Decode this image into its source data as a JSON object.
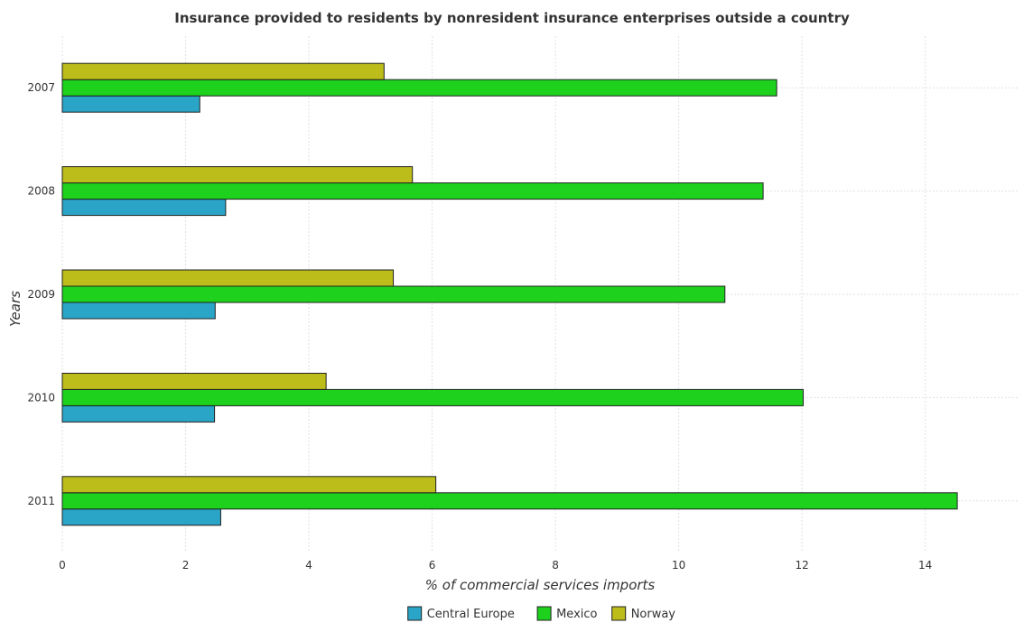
{
  "chart_data": {
    "type": "bar",
    "orientation": "horizontal",
    "title": "Insurance provided to residents by nonresident insurance enterprises outside a country",
    "xlabel": "% of commercial services imports",
    "ylabel": "Years",
    "categories": [
      "2007",
      "2008",
      "2009",
      "2010",
      "2011"
    ],
    "xlim": [
      0,
      15.5
    ],
    "xticks": [
      0,
      2,
      4,
      6,
      8,
      10,
      12,
      14
    ],
    "grid": true,
    "legend_position": "bottom-center",
    "series": [
      {
        "name": "Central Europe",
        "color": "#2aa5c8",
        "values": [
          2.23,
          2.65,
          2.48,
          2.47,
          2.57
        ]
      },
      {
        "name": "Mexico",
        "color": "#1dd11d",
        "values": [
          11.59,
          11.37,
          10.75,
          12.02,
          14.52
        ]
      },
      {
        "name": "Norway",
        "color": "#bcbc1a",
        "values": [
          5.22,
          5.68,
          5.37,
          4.28,
          6.06
        ]
      }
    ]
  }
}
